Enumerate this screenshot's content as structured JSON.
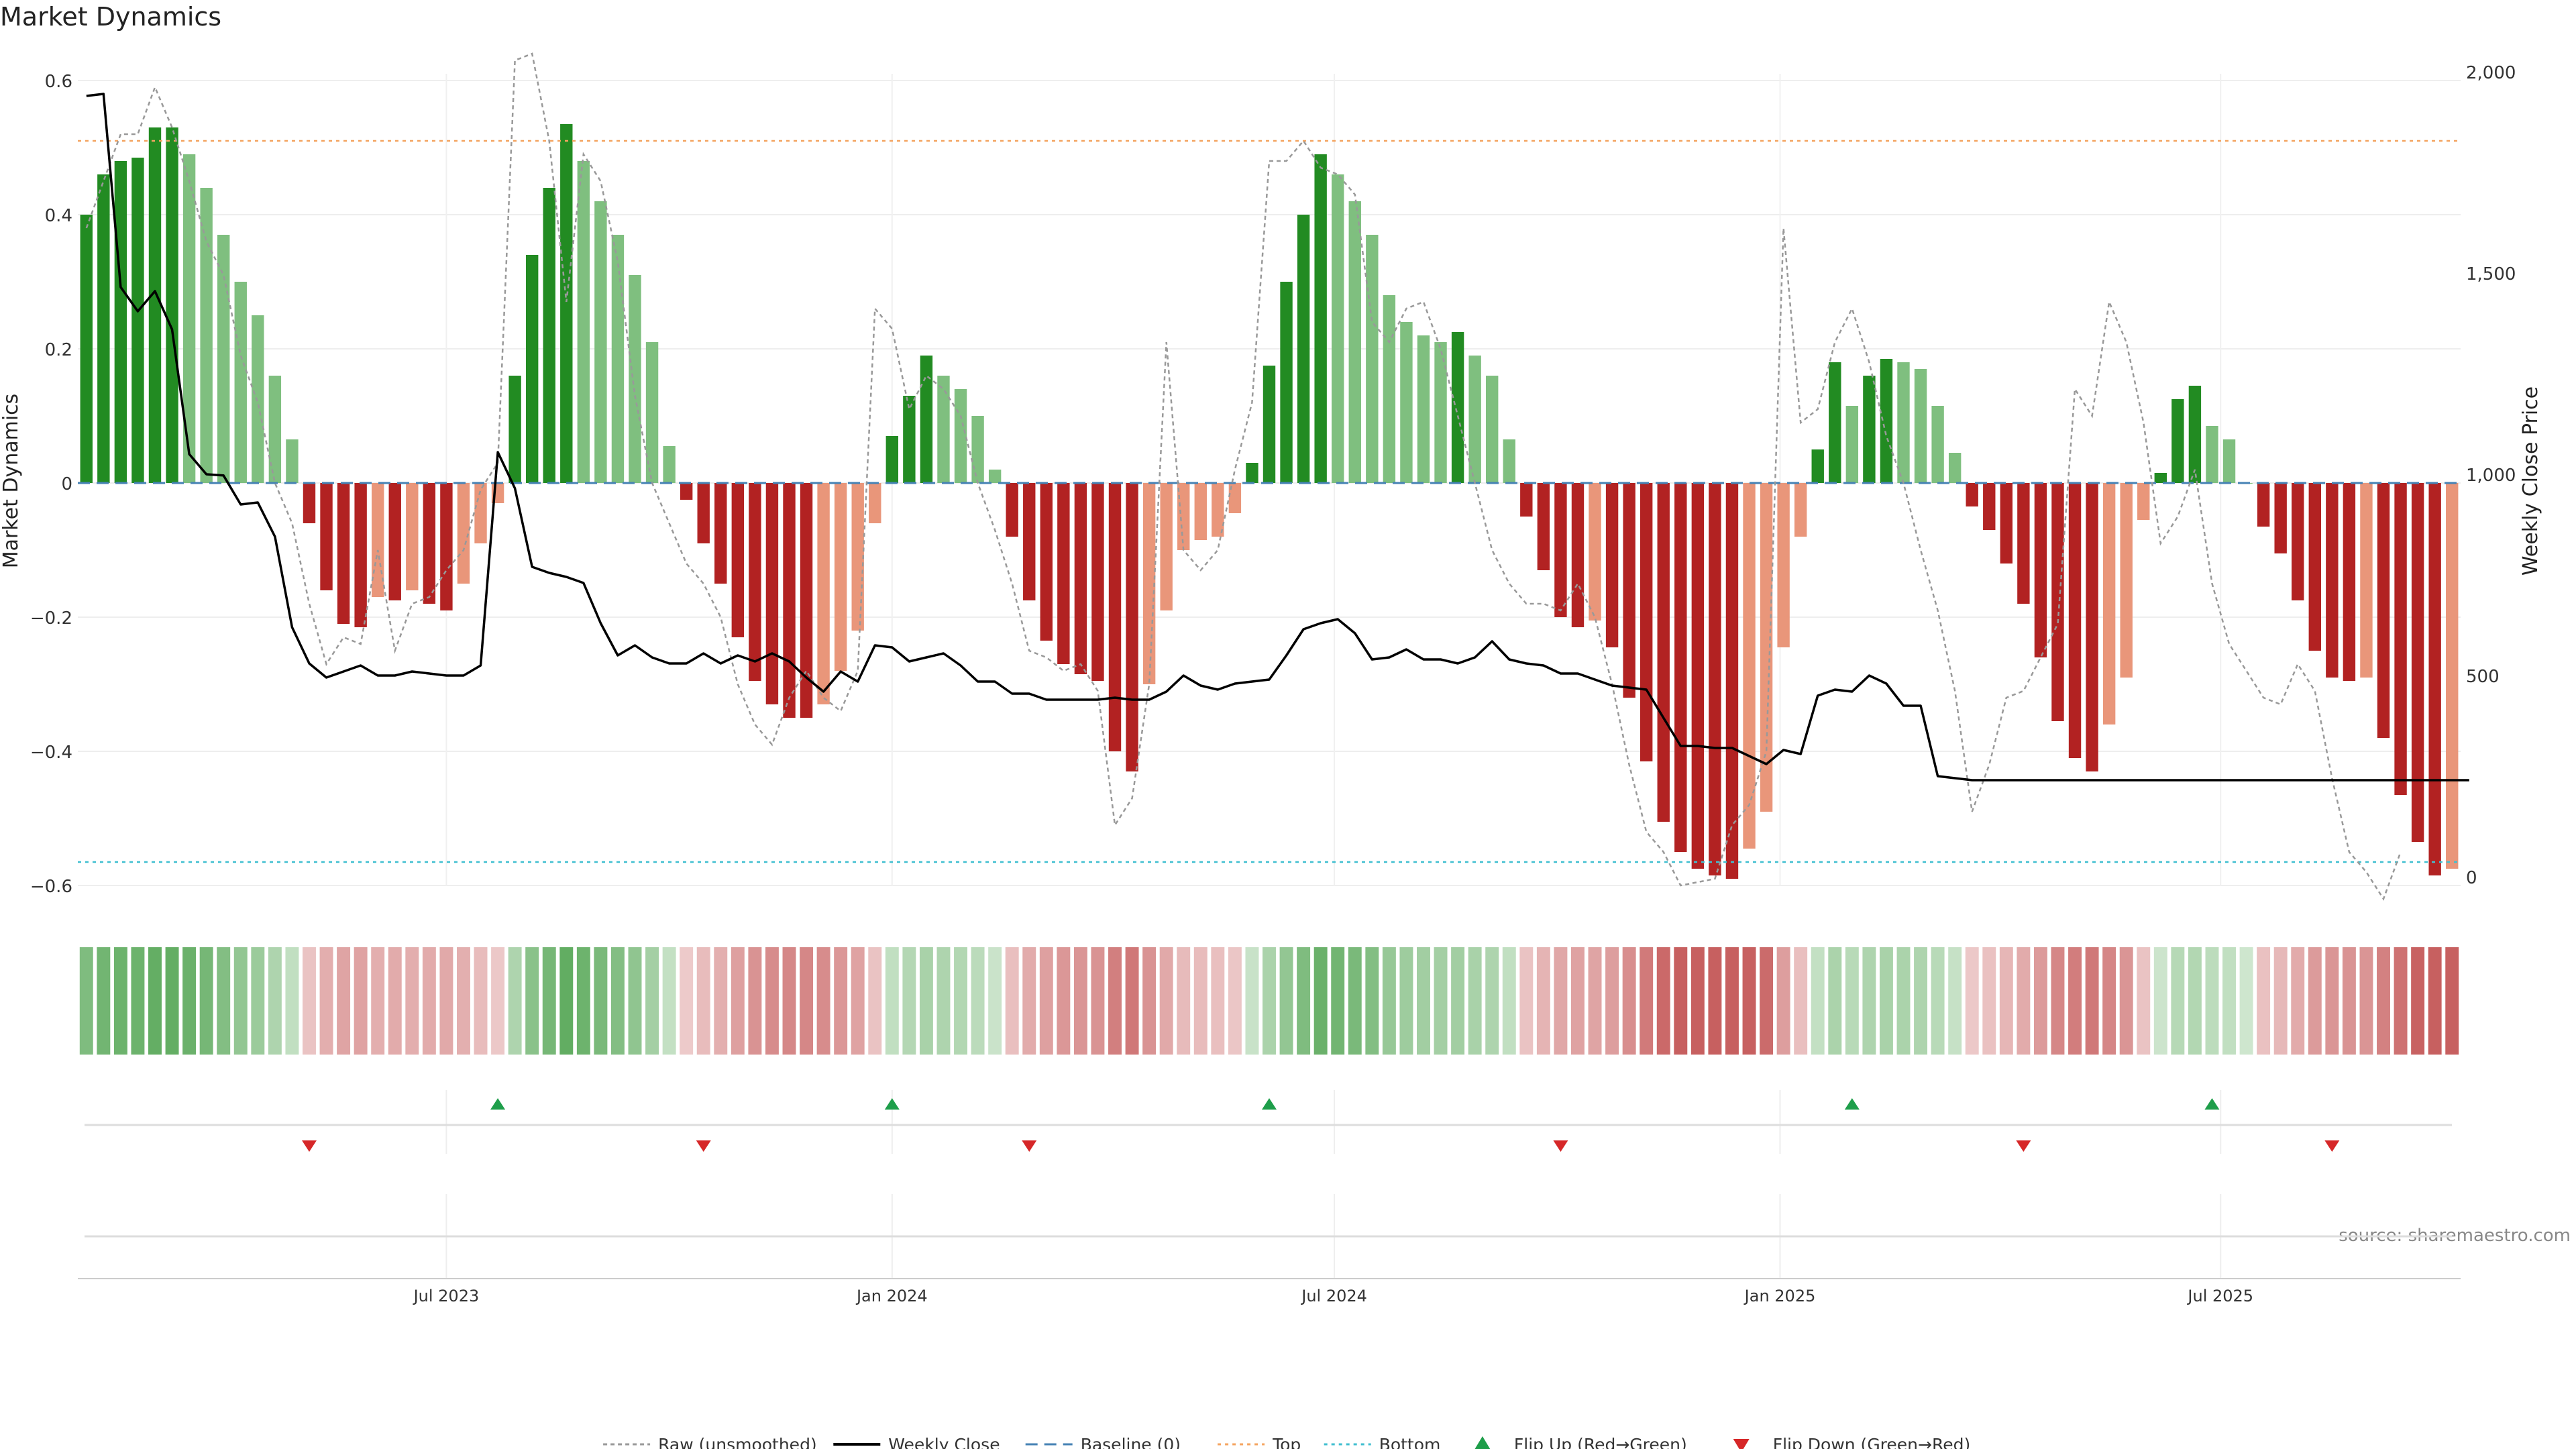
{
  "title": "Market Dynamics",
  "source": "source: sharemaestro.com",
  "chart_data": {
    "type": "bar",
    "title": "Market Dynamics",
    "ylabel": "Market Dynamics",
    "y2label": "Weekly Close Price",
    "ylim": [
      -0.62,
      0.62
    ],
    "y2lim": [
      -15,
      2015
    ],
    "yticks": [
      {
        "v": 0.6,
        "label": "0.6"
      },
      {
        "v": 0.4,
        "label": "0.4"
      },
      {
        "v": 0.2,
        "label": "0.2"
      },
      {
        "v": 0,
        "label": "0"
      },
      {
        "v": -0.2,
        "label": "−0.2"
      },
      {
        "v": -0.4,
        "label": "−0.4"
      },
      {
        "v": -0.6,
        "label": "−0.6"
      }
    ],
    "y2ticks": [
      {
        "v": 2000,
        "label": "2,000"
      },
      {
        "v": 1500,
        "label": "1,500"
      },
      {
        "v": 1000,
        "label": "1,000"
      },
      {
        "v": 500,
        "label": "500"
      },
      {
        "v": 0,
        "label": "0"
      }
    ],
    "xticks": [
      {
        "i": 21.5,
        "label": "Jul 2023"
      },
      {
        "i": 47.5,
        "label": "Jan 2024"
      },
      {
        "i": 73.3,
        "label": "Jul 2024"
      },
      {
        "i": 99.3,
        "label": "Jan 2025"
      },
      {
        "i": 125,
        "label": "Jul 2025"
      }
    ],
    "grid": true,
    "legend_position": "bottom",
    "colors": {
      "strong_green": "#228B22",
      "weak_green": "#7FBF7F",
      "strong_red": "#B22222",
      "weak_red": "#E9967A",
      "raw": "#999999",
      "close": "#000000",
      "baseline": "#4682B4",
      "top": "#F4A460",
      "bottom": "#40BFD0",
      "flip_up": "#1E9E4A",
      "flip_down": "#D62728"
    },
    "top_level": 0.51,
    "bottom_level": -0.565,
    "series": [
      {
        "name": "Market Dynamics",
        "values": [
          0.4,
          0.46,
          0.48,
          0.485,
          0.53,
          0.53,
          0.49,
          0.44,
          0.37,
          0.3,
          0.25,
          0.16,
          0.065,
          -0.06,
          -0.16,
          -0.21,
          -0.215,
          -0.17,
          -0.175,
          -0.16,
          -0.18,
          -0.19,
          -0.15,
          -0.09,
          -0.03,
          0.16,
          0.34,
          0.44,
          0.535,
          0.48,
          0.42,
          0.37,
          0.31,
          0.21,
          0.055,
          -0.025,
          -0.09,
          -0.15,
          -0.23,
          -0.295,
          -0.33,
          -0.35,
          -0.35,
          -0.33,
          -0.28,
          -0.22,
          -0.06,
          0.07,
          0.13,
          0.19,
          0.16,
          0.14,
          0.1,
          0.02,
          -0.08,
          -0.175,
          -0.235,
          -0.27,
          -0.285,
          -0.295,
          -0.4,
          -0.43,
          -0.3,
          -0.19,
          -0.1,
          -0.085,
          -0.08,
          -0.045,
          0.03,
          0.175,
          0.3,
          0.4,
          0.49,
          0.46,
          0.42,
          0.37,
          0.28,
          0.24,
          0.22,
          0.21,
          0.225,
          0.19,
          0.16,
          0.065,
          -0.05,
          -0.13,
          -0.2,
          -0.215,
          -0.205,
          -0.245,
          -0.32,
          -0.415,
          -0.505,
          -0.55,
          -0.575,
          -0.585,
          -0.59,
          -0.545,
          -0.49,
          -0.245,
          -0.08,
          0.05,
          0.18,
          0.115,
          0.16,
          0.185,
          0.18,
          0.17,
          0.115,
          0.045,
          -0.035,
          -0.07,
          -0.12,
          -0.18,
          -0.26,
          -0.355,
          -0.41,
          -0.43,
          -0.36,
          -0.29,
          -0.055,
          0.015,
          0.125,
          0.145,
          0.085,
          0.065,
          0.0,
          -0.065,
          -0.105,
          -0.175,
          -0.25,
          -0.29,
          -0.295,
          -0.29,
          -0.38,
          -0.465,
          -0.535,
          -0.585,
          -0.575
        ]
      },
      {
        "name": "Weekly Close",
        "values": [
          1940,
          1945,
          1465,
          1405,
          1455,
          1360,
          1050,
          1000,
          997,
          925,
          930,
          845,
          620,
          530,
          495,
          510,
          525,
          500,
          500,
          510,
          505,
          500,
          500,
          525,
          1055,
          965,
          770,
          755,
          745,
          730,
          630,
          550,
          575,
          545,
          530,
          530,
          555,
          530,
          550,
          535,
          555,
          535,
          495,
          460,
          510,
          485,
          575,
          570,
          535,
          545,
          555,
          525,
          485,
          485,
          455,
          455,
          440,
          440,
          440,
          440,
          445,
          440,
          440,
          460,
          500,
          475,
          465,
          480,
          485,
          490,
          550,
          615,
          630,
          640,
          605,
          540,
          545,
          565,
          540,
          540,
          530,
          545,
          585,
          540,
          530,
          525,
          505,
          505,
          490,
          475,
          470,
          465,
          395,
          325,
          325,
          320,
          320,
          300,
          280,
          315,
          305,
          450,
          465,
          460,
          500,
          480,
          425,
          425,
          250,
          245,
          240,
          240,
          240,
          240,
          240,
          240,
          240,
          240,
          240,
          240,
          240,
          240,
          240,
          240,
          240,
          240,
          240,
          240,
          240,
          240,
          240,
          240,
          240,
          240,
          240,
          240,
          240,
          240,
          240,
          240
        ]
      },
      {
        "name": "Raw (unsmoothed)",
        "values": [
          0.38,
          0.45,
          0.52,
          0.52,
          0.59,
          0.53,
          0.45,
          0.36,
          0.31,
          0.19,
          0.12,
          0.0,
          -0.06,
          -0.18,
          -0.27,
          -0.23,
          -0.24,
          -0.1,
          -0.25,
          -0.18,
          -0.17,
          -0.13,
          -0.1,
          -0.01,
          0.03,
          0.63,
          0.64,
          0.51,
          0.27,
          0.49,
          0.45,
          0.33,
          0.13,
          0.0,
          -0.06,
          -0.12,
          -0.15,
          -0.2,
          -0.3,
          -0.36,
          -0.39,
          -0.32,
          -0.28,
          -0.32,
          -0.34,
          -0.28,
          0.26,
          0.23,
          0.11,
          0.16,
          0.14,
          0.1,
          0.0,
          -0.07,
          -0.15,
          -0.25,
          -0.26,
          -0.28,
          -0.27,
          -0.31,
          -0.51,
          -0.47,
          -0.3,
          0.21,
          -0.1,
          -0.13,
          -0.1,
          0.02,
          0.12,
          0.48,
          0.48,
          0.51,
          0.47,
          0.46,
          0.43,
          0.24,
          0.21,
          0.26,
          0.27,
          0.2,
          0.1,
          0.0,
          -0.1,
          -0.15,
          -0.18,
          -0.18,
          -0.19,
          -0.15,
          -0.2,
          -0.3,
          -0.42,
          -0.52,
          -0.55,
          -0.6,
          -0.595,
          -0.59,
          -0.51,
          -0.48,
          -0.4,
          0.38,
          0.09,
          0.11,
          0.21,
          0.26,
          0.18,
          0.07,
          0.0,
          -0.1,
          -0.19,
          -0.31,
          -0.49,
          -0.42,
          -0.32,
          -0.31,
          -0.26,
          -0.21,
          0.14,
          0.1,
          0.27,
          0.21,
          0.09,
          -0.09,
          -0.05,
          0.02,
          -0.15,
          -0.24,
          -0.28,
          -0.32,
          -0.33,
          -0.27,
          -0.31,
          -0.44,
          -0.55,
          -0.58,
          -0.62,
          -0.55
        ]
      }
    ],
    "strip_label": "",
    "flips_up_idx": [
      24,
      47,
      69,
      103,
      124
    ],
    "flips_down_idx": [
      13,
      36,
      55,
      86,
      113,
      131
    ],
    "legend": [
      {
        "label": "Raw (unsmoothed)",
        "kind": "raw"
      },
      {
        "label": "Weekly Close",
        "kind": "close"
      },
      {
        "label": "Baseline (0)",
        "kind": "baseline"
      },
      {
        "label": "Top",
        "kind": "top"
      },
      {
        "label": "Bottom",
        "kind": "bottom"
      },
      {
        "label": "Flip Up (Red→Green)",
        "kind": "flipup"
      },
      {
        "label": "Flip Down (Green→Red)",
        "kind": "flipdown"
      }
    ]
  }
}
